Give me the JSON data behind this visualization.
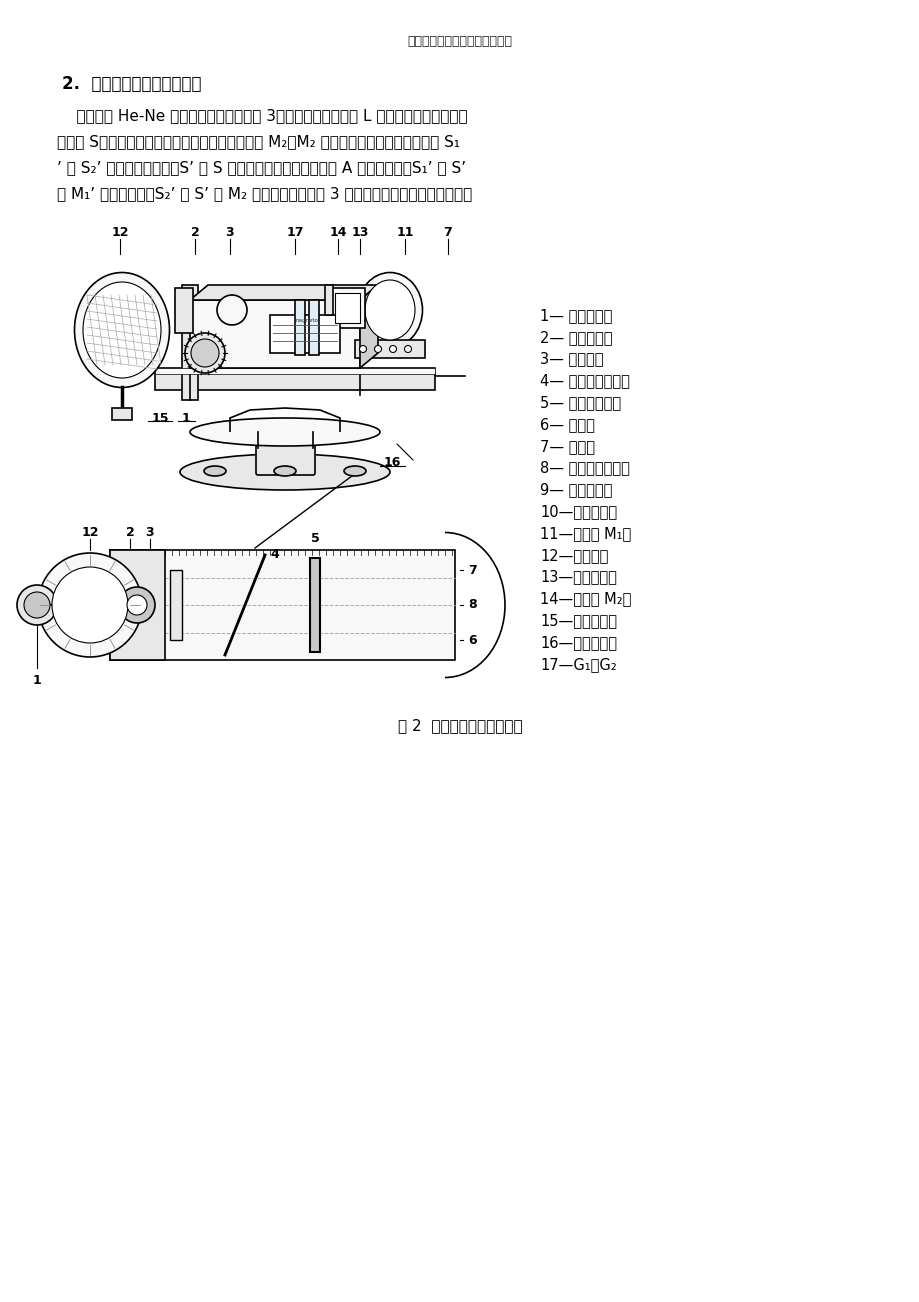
{
  "page_title": "大学物理实验之迈克尔逊干涉仪",
  "section_title": "2.  单色点光源的非定域干涉",
  "lines": [
    "    本实验用 He-Ne 激光器作为光源（见图 3），激光通过扩束镜 L 汇聚成一个强度很高的",
    "点光源 S，射向迈克尔逊干涉仪，点光源经平面镜 M₂、M₂ 反射后，相当于由两个点光源 S₁",
    "’ 和 S₂’ 发出的相干光束。S’ 是 S 的等效光源，是经半反射面 A 所成的虚像。S₁’ 是 S’",
    "经 M₁’ 所成的虚像。S₂’ 是 S’ 经 M₂ 所成的虚像。由图 3 可知，只要观察屏放在两点光源"
  ],
  "legend_items": [
    "1— 微调手轮；",
    "2— 粗调手轮；",
    "3— 刻度盘；",
    "4— 丝杆啮合螺母；",
    "5— 毫米刻度尺；",
    "6— 丝杆；",
    "7— 导轨；",
    "8— 丝杆顶进螺帽；",
    "9— 调平螺丝；",
    "10—锁紧螺丝；",
    "11—可动镜 M₁；",
    "12—观察屏；",
    "13—倾度粗调；",
    "14—固定镜 M₂；",
    "15—倾度微调；",
    "16—倾度微调；",
    "17—G₁、G₂"
  ],
  "figure_caption": "图 2  迈克尔逊干涉仪结构图",
  "bg_color": "#ffffff",
  "text_color": "#000000"
}
